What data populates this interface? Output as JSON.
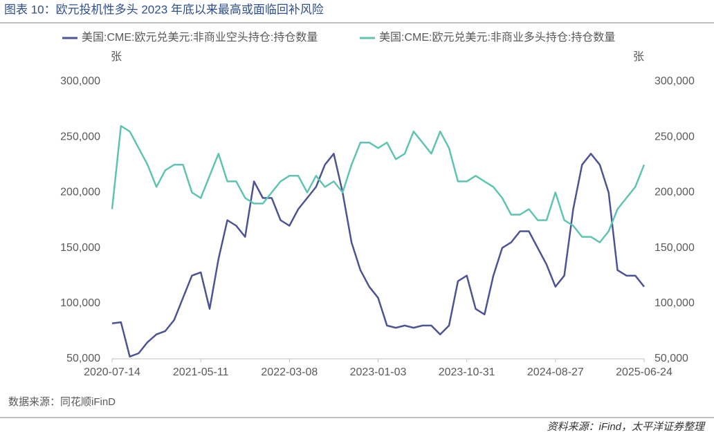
{
  "header": {
    "title": "图表 10：欧元投机性多头 2023 年底以来最高或面临回补风险"
  },
  "chart_data": {
    "type": "line",
    "y_label": "张",
    "y2_label": "张",
    "categories": [
      "2020-07-14",
      null,
      null,
      null,
      null,
      null,
      null,
      null,
      null,
      null,
      "2021-05-11",
      null,
      null,
      null,
      null,
      null,
      null,
      null,
      null,
      null,
      "2022-03-08",
      null,
      null,
      null,
      null,
      null,
      null,
      null,
      null,
      null,
      "2023-01-03",
      null,
      null,
      null,
      null,
      null,
      null,
      null,
      null,
      null,
      "2023-10-31",
      null,
      null,
      null,
      null,
      null,
      null,
      null,
      null,
      null,
      "2024-08-27",
      null,
      null,
      null,
      null,
      null,
      null,
      null,
      null,
      null,
      "2025-06-24"
    ],
    "series": [
      {
        "name": "美国:CME:欧元兑美元:非商业空头持仓:持仓数量",
        "color": "#4b5394",
        "axis": "y",
        "values": [
          82000,
          83000,
          52000,
          55000,
          65000,
          72000,
          75000,
          85000,
          105000,
          125000,
          128000,
          95000,
          140000,
          175000,
          170000,
          160000,
          210000,
          195000,
          195000,
          175000,
          170000,
          185000,
          195000,
          205000,
          225000,
          235000,
          200000,
          155000,
          130000,
          115000,
          105000,
          80000,
          78000,
          80000,
          78000,
          80000,
          80000,
          72000,
          80000,
          120000,
          125000,
          95000,
          90000,
          125000,
          150000,
          155000,
          165000,
          165000,
          150000,
          135000,
          115000,
          125000,
          185000,
          225000,
          235000,
          225000,
          200000,
          130000,
          125000,
          125000,
          115000
        ]
      },
      {
        "name": "美国:CME:欧元兑美元:非商业多头持仓:持仓数量",
        "color": "#5ec4b1",
        "axis": "y2",
        "values": [
          185000,
          260000,
          255000,
          240000,
          225000,
          205000,
          220000,
          225000,
          225000,
          200000,
          195000,
          215000,
          235000,
          210000,
          210000,
          195000,
          190000,
          190000,
          200000,
          210000,
          215000,
          215000,
          200000,
          215000,
          205000,
          210000,
          200000,
          225000,
          245000,
          245000,
          240000,
          245000,
          230000,
          235000,
          255000,
          245000,
          235000,
          255000,
          240000,
          210000,
          210000,
          215000,
          210000,
          205000,
          195000,
          180000,
          180000,
          185000,
          175000,
          175000,
          200000,
          175000,
          170000,
          160000,
          160000,
          155000,
          165000,
          185000,
          195000,
          205000,
          225000
        ]
      }
    ],
    "ylim": [
      50000,
      300000
    ],
    "yticks": [
      {
        "value": 50000,
        "label": "50,000"
      },
      {
        "value": 100000,
        "label": "100,000"
      },
      {
        "value": 150000,
        "label": "150,000"
      },
      {
        "value": 200000,
        "label": "200,000"
      },
      {
        "value": 250000,
        "label": "250,000"
      },
      {
        "value": 300000,
        "label": "300,000"
      }
    ],
    "y2lim": [
      50000,
      300000
    ],
    "y2ticks": [
      {
        "value": 50000,
        "label": "50,000"
      },
      {
        "value": 100000,
        "label": "100,000"
      },
      {
        "value": 150000,
        "label": "150,000"
      },
      {
        "value": 200000,
        "label": "200,000"
      },
      {
        "value": 250000,
        "label": "250,000"
      },
      {
        "value": 300000,
        "label": "300,000"
      }
    ],
    "source": "数据来源：同花顺iFinD"
  },
  "footer": {
    "text": "资料来源：iFind，太平洋证券整理"
  }
}
